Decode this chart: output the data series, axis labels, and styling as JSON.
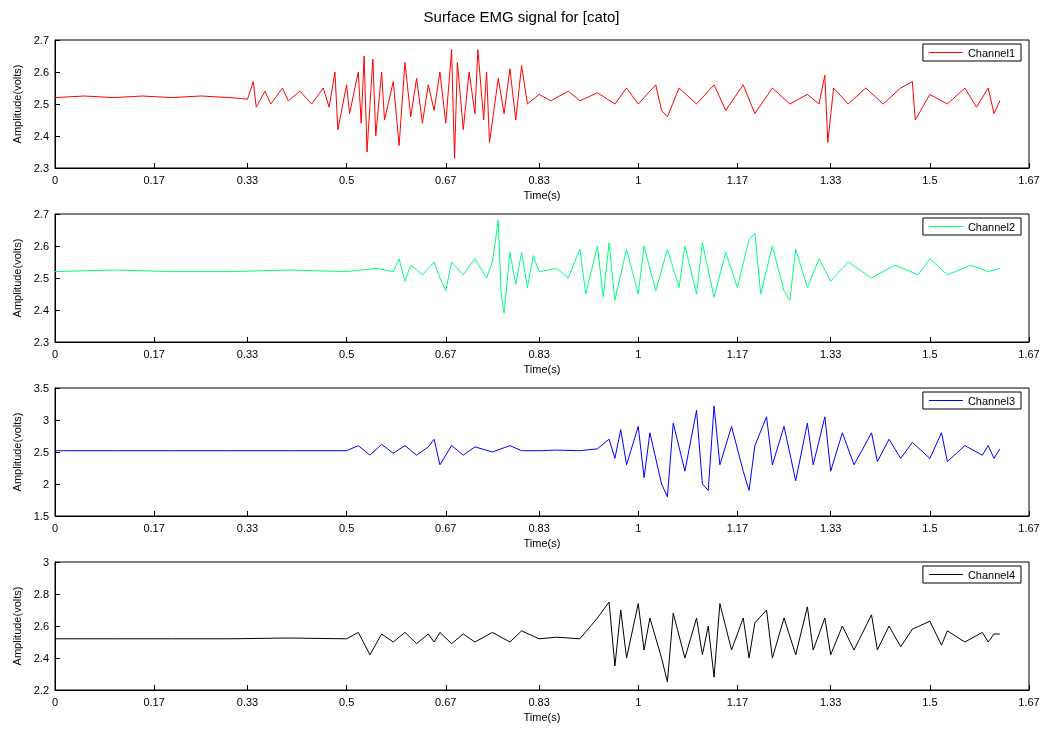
{
  "chart_data": [
    {
      "type": "line",
      "title": "Surface EMG signal for [cato]",
      "xlabel": "Time(s)",
      "ylabel": "Amplitude(volts)",
      "legend": "top right",
      "grid": false,
      "marker": "none",
      "xlim": [
        0,
        1.67
      ],
      "xticks": [
        0,
        0.17,
        0.33,
        0.5,
        0.67,
        0.83,
        1,
        1.17,
        1.33,
        1.5,
        1.67
      ],
      "ylim": [
        2.3,
        2.7
      ],
      "yticks": [
        2.3,
        2.4,
        2.5,
        2.6,
        2.7
      ],
      "x": [
        0,
        0.05,
        0.1,
        0.15,
        0.2,
        0.25,
        0.3,
        0.33,
        0.34,
        0.345,
        0.36,
        0.37,
        0.39,
        0.4,
        0.42,
        0.44,
        0.46,
        0.47,
        0.48,
        0.485,
        0.5,
        0.505,
        0.52,
        0.525,
        0.53,
        0.535,
        0.545,
        0.55,
        0.56,
        0.565,
        0.58,
        0.59,
        0.6,
        0.61,
        0.62,
        0.63,
        0.64,
        0.65,
        0.66,
        0.67,
        0.68,
        0.685,
        0.69,
        0.7,
        0.71,
        0.72,
        0.725,
        0.735,
        0.74,
        0.745,
        0.76,
        0.77,
        0.78,
        0.79,
        0.8,
        0.81,
        0.83,
        0.85,
        0.88,
        0.9,
        0.93,
        0.96,
        0.98,
        1.0,
        1.03,
        1.04,
        1.05,
        1.07,
        1.1,
        1.13,
        1.15,
        1.18,
        1.2,
        1.23,
        1.26,
        1.29,
        1.31,
        1.32,
        1.325,
        1.335,
        1.36,
        1.39,
        1.42,
        1.45,
        1.47,
        1.475,
        1.5,
        1.53,
        1.56,
        1.58,
        1.6,
        1.61,
        1.62
      ],
      "series": [
        {
          "name": "Channel1",
          "color": "#ff0000",
          "values": [
            2.52,
            2.525,
            2.52,
            2.525,
            2.52,
            2.525,
            2.52,
            2.515,
            2.57,
            2.49,
            2.54,
            2.5,
            2.55,
            2.51,
            2.54,
            2.5,
            2.55,
            2.49,
            2.6,
            2.42,
            2.56,
            2.47,
            2.6,
            2.44,
            2.65,
            2.35,
            2.64,
            2.4,
            2.6,
            2.45,
            2.57,
            2.37,
            2.63,
            2.46,
            2.58,
            2.44,
            2.56,
            2.48,
            2.6,
            2.44,
            2.67,
            2.33,
            2.63,
            2.42,
            2.6,
            2.47,
            2.67,
            2.45,
            2.6,
            2.38,
            2.58,
            2.47,
            2.61,
            2.45,
            2.62,
            2.5,
            2.53,
            2.51,
            2.54,
            2.51,
            2.535,
            2.5,
            2.55,
            2.5,
            2.56,
            2.48,
            2.46,
            2.55,
            2.5,
            2.56,
            2.48,
            2.56,
            2.47,
            2.55,
            2.5,
            2.53,
            2.5,
            2.59,
            2.38,
            2.55,
            2.5,
            2.55,
            2.5,
            2.55,
            2.57,
            2.45,
            2.53,
            2.5,
            2.55,
            2.49,
            2.55,
            2.47,
            2.51
          ]
        }
      ]
    },
    {
      "type": "line",
      "xlabel": "Time(s)",
      "ylabel": "Amplitude(volts)",
      "legend": "top right",
      "grid": false,
      "marker": "none",
      "xlim": [
        0,
        1.67
      ],
      "xticks": [
        0,
        0.17,
        0.33,
        0.5,
        0.67,
        0.83,
        1,
        1.17,
        1.33,
        1.5,
        1.67
      ],
      "ylim": [
        2.3,
        2.7
      ],
      "yticks": [
        2.3,
        2.4,
        2.5,
        2.6,
        2.7
      ],
      "x": [
        0,
        0.1,
        0.2,
        0.3,
        0.4,
        0.5,
        0.55,
        0.58,
        0.59,
        0.6,
        0.61,
        0.63,
        0.65,
        0.66,
        0.67,
        0.68,
        0.7,
        0.72,
        0.74,
        0.75,
        0.76,
        0.765,
        0.77,
        0.78,
        0.79,
        0.8,
        0.81,
        0.82,
        0.83,
        0.86,
        0.88,
        0.9,
        0.91,
        0.93,
        0.94,
        0.95,
        0.96,
        0.98,
        1.0,
        1.01,
        1.03,
        1.05,
        1.07,
        1.08,
        1.1,
        1.11,
        1.13,
        1.15,
        1.17,
        1.19,
        1.2,
        1.21,
        1.23,
        1.25,
        1.26,
        1.27,
        1.29,
        1.31,
        1.33,
        1.36,
        1.4,
        1.44,
        1.48,
        1.5,
        1.53,
        1.57,
        1.6,
        1.62
      ],
      "series": [
        {
          "name": "Channel2",
          "color": "#00ff80",
          "values": [
            2.52,
            2.525,
            2.52,
            2.52,
            2.525,
            2.52,
            2.53,
            2.52,
            2.56,
            2.49,
            2.54,
            2.51,
            2.55,
            2.5,
            2.46,
            2.55,
            2.51,
            2.56,
            2.5,
            2.55,
            2.68,
            2.45,
            2.39,
            2.58,
            2.48,
            2.58,
            2.47,
            2.57,
            2.52,
            2.53,
            2.5,
            2.59,
            2.45,
            2.6,
            2.44,
            2.61,
            2.43,
            2.59,
            2.45,
            2.6,
            2.46,
            2.59,
            2.47,
            2.6,
            2.45,
            2.61,
            2.44,
            2.58,
            2.47,
            2.62,
            2.64,
            2.45,
            2.6,
            2.46,
            2.43,
            2.59,
            2.47,
            2.56,
            2.49,
            2.55,
            2.5,
            2.54,
            2.51,
            2.56,
            2.51,
            2.54,
            2.52,
            2.53
          ]
        }
      ]
    },
    {
      "type": "line",
      "xlabel": "Time(s)",
      "ylabel": "Amplitude(volts)",
      "legend": "top right",
      "grid": false,
      "marker": "none",
      "xlim": [
        0,
        1.67
      ],
      "xticks": [
        0,
        0.17,
        0.33,
        0.5,
        0.67,
        0.83,
        1,
        1.17,
        1.33,
        1.5,
        1.67
      ],
      "ylim": [
        1.5,
        3.5
      ],
      "yticks": [
        1.5,
        2,
        2.5,
        3,
        3.5
      ],
      "x": [
        0,
        0.1,
        0.2,
        0.3,
        0.4,
        0.5,
        0.52,
        0.54,
        0.56,
        0.58,
        0.6,
        0.62,
        0.64,
        0.65,
        0.66,
        0.68,
        0.7,
        0.72,
        0.75,
        0.78,
        0.8,
        0.83,
        0.86,
        0.9,
        0.93,
        0.95,
        0.96,
        0.97,
        0.98,
        1.0,
        1.01,
        1.02,
        1.04,
        1.05,
        1.06,
        1.08,
        1.1,
        1.11,
        1.12,
        1.13,
        1.14,
        1.16,
        1.18,
        1.19,
        1.2,
        1.22,
        1.23,
        1.25,
        1.27,
        1.29,
        1.3,
        1.32,
        1.33,
        1.35,
        1.37,
        1.4,
        1.41,
        1.43,
        1.45,
        1.47,
        1.5,
        1.52,
        1.53,
        1.56,
        1.59,
        1.6,
        1.61,
        1.62
      ],
      "series": [
        {
          "name": "Channel3",
          "color": "#0000ff",
          "values": [
            2.52,
            2.52,
            2.52,
            2.52,
            2.52,
            2.52,
            2.6,
            2.45,
            2.62,
            2.48,
            2.6,
            2.45,
            2.58,
            2.7,
            2.3,
            2.6,
            2.45,
            2.58,
            2.5,
            2.6,
            2.52,
            2.52,
            2.53,
            2.52,
            2.55,
            2.7,
            2.4,
            2.85,
            2.3,
            2.9,
            2.1,
            2.8,
            2.0,
            1.8,
            2.95,
            2.2,
            3.15,
            2.0,
            1.9,
            3.22,
            2.3,
            2.9,
            2.2,
            1.9,
            2.6,
            3.05,
            2.3,
            2.9,
            2.05,
            2.95,
            2.3,
            3.05,
            2.2,
            2.8,
            2.3,
            2.8,
            2.35,
            2.7,
            2.4,
            2.65,
            2.4,
            2.8,
            2.35,
            2.6,
            2.45,
            2.6,
            2.4,
            2.55
          ]
        }
      ]
    },
    {
      "type": "line",
      "xlabel": "Time(s)",
      "ylabel": "Amplitude(volts)",
      "legend": "top right",
      "grid": false,
      "marker": "none",
      "xlim": [
        0,
        1.67
      ],
      "xticks": [
        0,
        0.17,
        0.33,
        0.5,
        0.67,
        0.83,
        1,
        1.17,
        1.33,
        1.5,
        1.67
      ],
      "ylim": [
        2.2,
        3
      ],
      "yticks": [
        2.2,
        2.4,
        2.6,
        2.8,
        3
      ],
      "x": [
        0,
        0.1,
        0.2,
        0.3,
        0.4,
        0.5,
        0.52,
        0.54,
        0.56,
        0.58,
        0.6,
        0.62,
        0.64,
        0.65,
        0.66,
        0.68,
        0.7,
        0.72,
        0.75,
        0.78,
        0.8,
        0.83,
        0.86,
        0.9,
        0.93,
        0.95,
        0.96,
        0.97,
        0.98,
        1.0,
        1.01,
        1.02,
        1.04,
        1.05,
        1.06,
        1.08,
        1.1,
        1.11,
        1.12,
        1.13,
        1.14,
        1.16,
        1.18,
        1.19,
        1.2,
        1.22,
        1.23,
        1.25,
        1.27,
        1.29,
        1.3,
        1.32,
        1.33,
        1.35,
        1.37,
        1.4,
        1.41,
        1.43,
        1.45,
        1.47,
        1.5,
        1.52,
        1.53,
        1.56,
        1.59,
        1.6,
        1.61,
        1.62
      ],
      "series": [
        {
          "name": "Channel4",
          "color": "#000000",
          "values": [
            2.52,
            2.52,
            2.52,
            2.52,
            2.525,
            2.52,
            2.56,
            2.42,
            2.55,
            2.5,
            2.56,
            2.49,
            2.55,
            2.5,
            2.56,
            2.49,
            2.55,
            2.5,
            2.56,
            2.5,
            2.57,
            2.52,
            2.53,
            2.52,
            2.65,
            2.75,
            2.35,
            2.7,
            2.4,
            2.74,
            2.45,
            2.65,
            2.4,
            2.25,
            2.68,
            2.4,
            2.65,
            2.42,
            2.6,
            2.28,
            2.74,
            2.45,
            2.65,
            2.4,
            2.62,
            2.7,
            2.4,
            2.65,
            2.42,
            2.72,
            2.45,
            2.65,
            2.42,
            2.6,
            2.45,
            2.67,
            2.45,
            2.6,
            2.47,
            2.58,
            2.63,
            2.48,
            2.57,
            2.5,
            2.56,
            2.5,
            2.55,
            2.55
          ]
        }
      ]
    }
  ]
}
